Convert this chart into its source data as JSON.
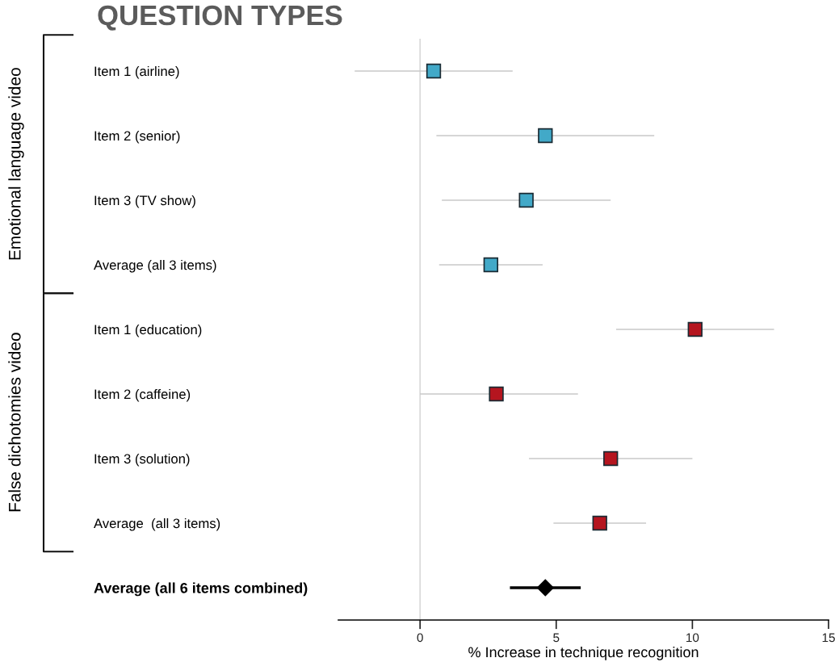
{
  "chart_data": {
    "type": "scatter",
    "orientation": "horizontal",
    "title": "QUESTION TYPES",
    "xlabel": "% Increase in technique recognition",
    "categories": [
      "Item 1 (airline)",
      "Item 2 (senior)",
      "Item 3 (TV show)",
      "Average (all 3 items)",
      "Item 1 (education)",
      "Item 2 (caffeine)",
      "Item 3 (solution)",
      "Average  (all 3 items)",
      "Average (all 6 items combined)"
    ],
    "series": [
      {
        "color": "#42a9c8",
        "marker": "square",
        "values": [
          0.5,
          4.6,
          3.9,
          2.6,
          null,
          null,
          null,
          null,
          null
        ],
        "errors": [
          [
            -2.4,
            3.4
          ],
          [
            0.6,
            8.6
          ],
          [
            0.8,
            7.0
          ],
          [
            0.7,
            4.5
          ],
          null,
          null,
          null,
          null,
          null
        ]
      },
      {
        "color": "#b5151f",
        "marker": "square",
        "values": [
          null,
          null,
          null,
          null,
          10.1,
          2.8,
          7.0,
          6.6,
          null
        ],
        "errors": [
          null,
          null,
          null,
          null,
          [
            7.2,
            13.0
          ],
          [
            0.0,
            5.8
          ],
          [
            4.0,
            10.0
          ],
          [
            4.9,
            8.3
          ],
          null
        ]
      },
      {
        "color": "#000000",
        "marker": "diamond",
        "values": [
          null,
          null,
          null,
          null,
          null,
          null,
          null,
          null,
          4.6
        ],
        "errors": [
          null,
          null,
          null,
          null,
          null,
          null,
          null,
          null,
          [
            3.3,
            5.9
          ]
        ]
      }
    ],
    "annotations": [
      "Emotional language video",
      "False dichotomies video"
    ],
    "xlim": [
      -3,
      15
    ],
    "xticks": [
      0,
      5,
      10,
      15
    ],
    "ref_lines": [
      {
        "axis": "x",
        "value": 0,
        "color": "#d9d9d9"
      }
    ],
    "grid": false,
    "legend": false
  }
}
